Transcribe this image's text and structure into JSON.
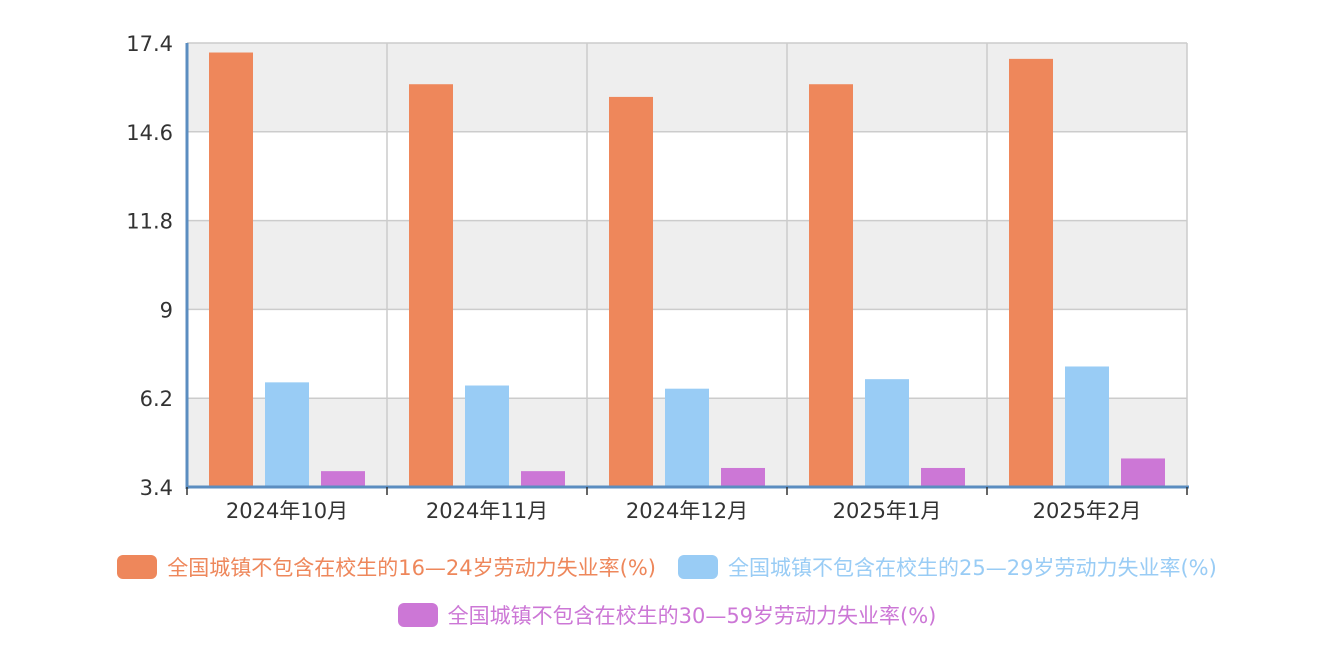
{
  "chart_data": {
    "type": "bar",
    "title": "",
    "xlabel": "",
    "ylabel": "",
    "categories": [
      "2024年10月",
      "2024年11月",
      "2024年12月",
      "2025年1月",
      "2025年2月"
    ],
    "ylim": [
      3.4,
      17.4
    ],
    "yticks": [
      "17.4",
      "14.6",
      "11.8",
      "9",
      "6.2",
      "3.4"
    ],
    "grid": true,
    "legend_position": "bottom",
    "series": [
      {
        "name": "全国城镇不包含在校生的16—24岁劳动力失业率(%)",
        "values": [
          17.1,
          16.1,
          15.7,
          16.1,
          16.9
        ],
        "color": "#EE875B"
      },
      {
        "name": "全国城镇不包含在校生的25—29岁劳动力失业率(%)",
        "values": [
          6.7,
          6.6,
          6.5,
          6.8,
          7.2
        ],
        "color": "#99CCF5"
      },
      {
        "name": "全国城镇不包含在校生的30—59岁劳动力失业率(%)",
        "values": [
          3.9,
          3.9,
          4.0,
          4.0,
          4.3
        ],
        "color": "#CC77D6"
      }
    ]
  }
}
